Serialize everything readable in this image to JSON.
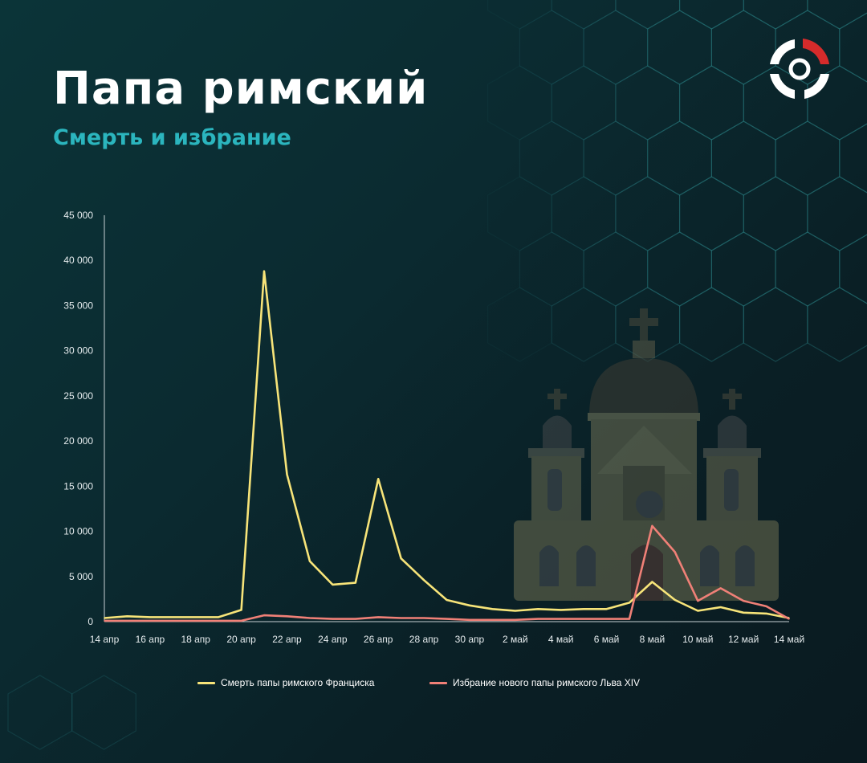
{
  "header": {
    "title": "Папа римский",
    "subtitle": "Смерть и избрание"
  },
  "icons": {
    "logo": "brand-logo-icon",
    "decoration": "church-icon"
  },
  "colors": {
    "series1": "#f7e479",
    "series2": "#f08077",
    "axis": "#c7d0d3",
    "tick_text": "#e6ecee"
  },
  "chart_data": {
    "type": "line",
    "x": [
      "14 апр",
      "15 апр",
      "16 апр",
      "17 апр",
      "18 апр",
      "19 апр",
      "20 апр",
      "21 апр",
      "22 апр",
      "23 апр",
      "24 апр",
      "25 апр",
      "26 апр",
      "27 апр",
      "28 апр",
      "29 апр",
      "30 апр",
      "1 май",
      "2 май",
      "3 май",
      "4 май",
      "5 май",
      "6 май",
      "7 май",
      "8 май",
      "9 май",
      "10 май",
      "11 май",
      "12 май",
      "13 май",
      "14 май"
    ],
    "xtick_labels": [
      "14 апр",
      "16 апр",
      "18 апр",
      "20 апр",
      "22 апр",
      "24 апр",
      "26 апр",
      "28 апр",
      "30 апр",
      "2 май",
      "4 май",
      "6 май",
      "8 май",
      "10 май",
      "12 май",
      "14 май"
    ],
    "yticks": [
      0,
      5000,
      10000,
      15000,
      20000,
      25000,
      30000,
      35000,
      40000,
      45000
    ],
    "ytick_labels": [
      "0",
      "5 000",
      "10 000",
      "15 000",
      "20 000",
      "25 000",
      "30 000",
      "35 000",
      "40 000",
      "45 000"
    ],
    "ylim": [
      0,
      45000
    ],
    "grid": false,
    "legend_position": "bottom",
    "series": [
      {
        "name": "Смерть папы римского Франциска",
        "values": [
          400,
          600,
          500,
          500,
          500,
          500,
          1300,
          38800,
          16300,
          6700,
          4100,
          4300,
          15800,
          7000,
          4600,
          2400,
          1800,
          1400,
          1200,
          1400,
          1300,
          1400,
          1400,
          2100,
          4400,
          2400,
          1200,
          1600,
          1000,
          900,
          400
        ]
      },
      {
        "name": "Избрание нового папы римского Льва XIV",
        "values": [
          100,
          100,
          100,
          100,
          100,
          100,
          100,
          700,
          600,
          400,
          300,
          300,
          500,
          400,
          400,
          300,
          200,
          200,
          200,
          300,
          300,
          300,
          300,
          300,
          10600,
          7700,
          2300,
          3700,
          2300,
          1700,
          300
        ]
      }
    ]
  }
}
